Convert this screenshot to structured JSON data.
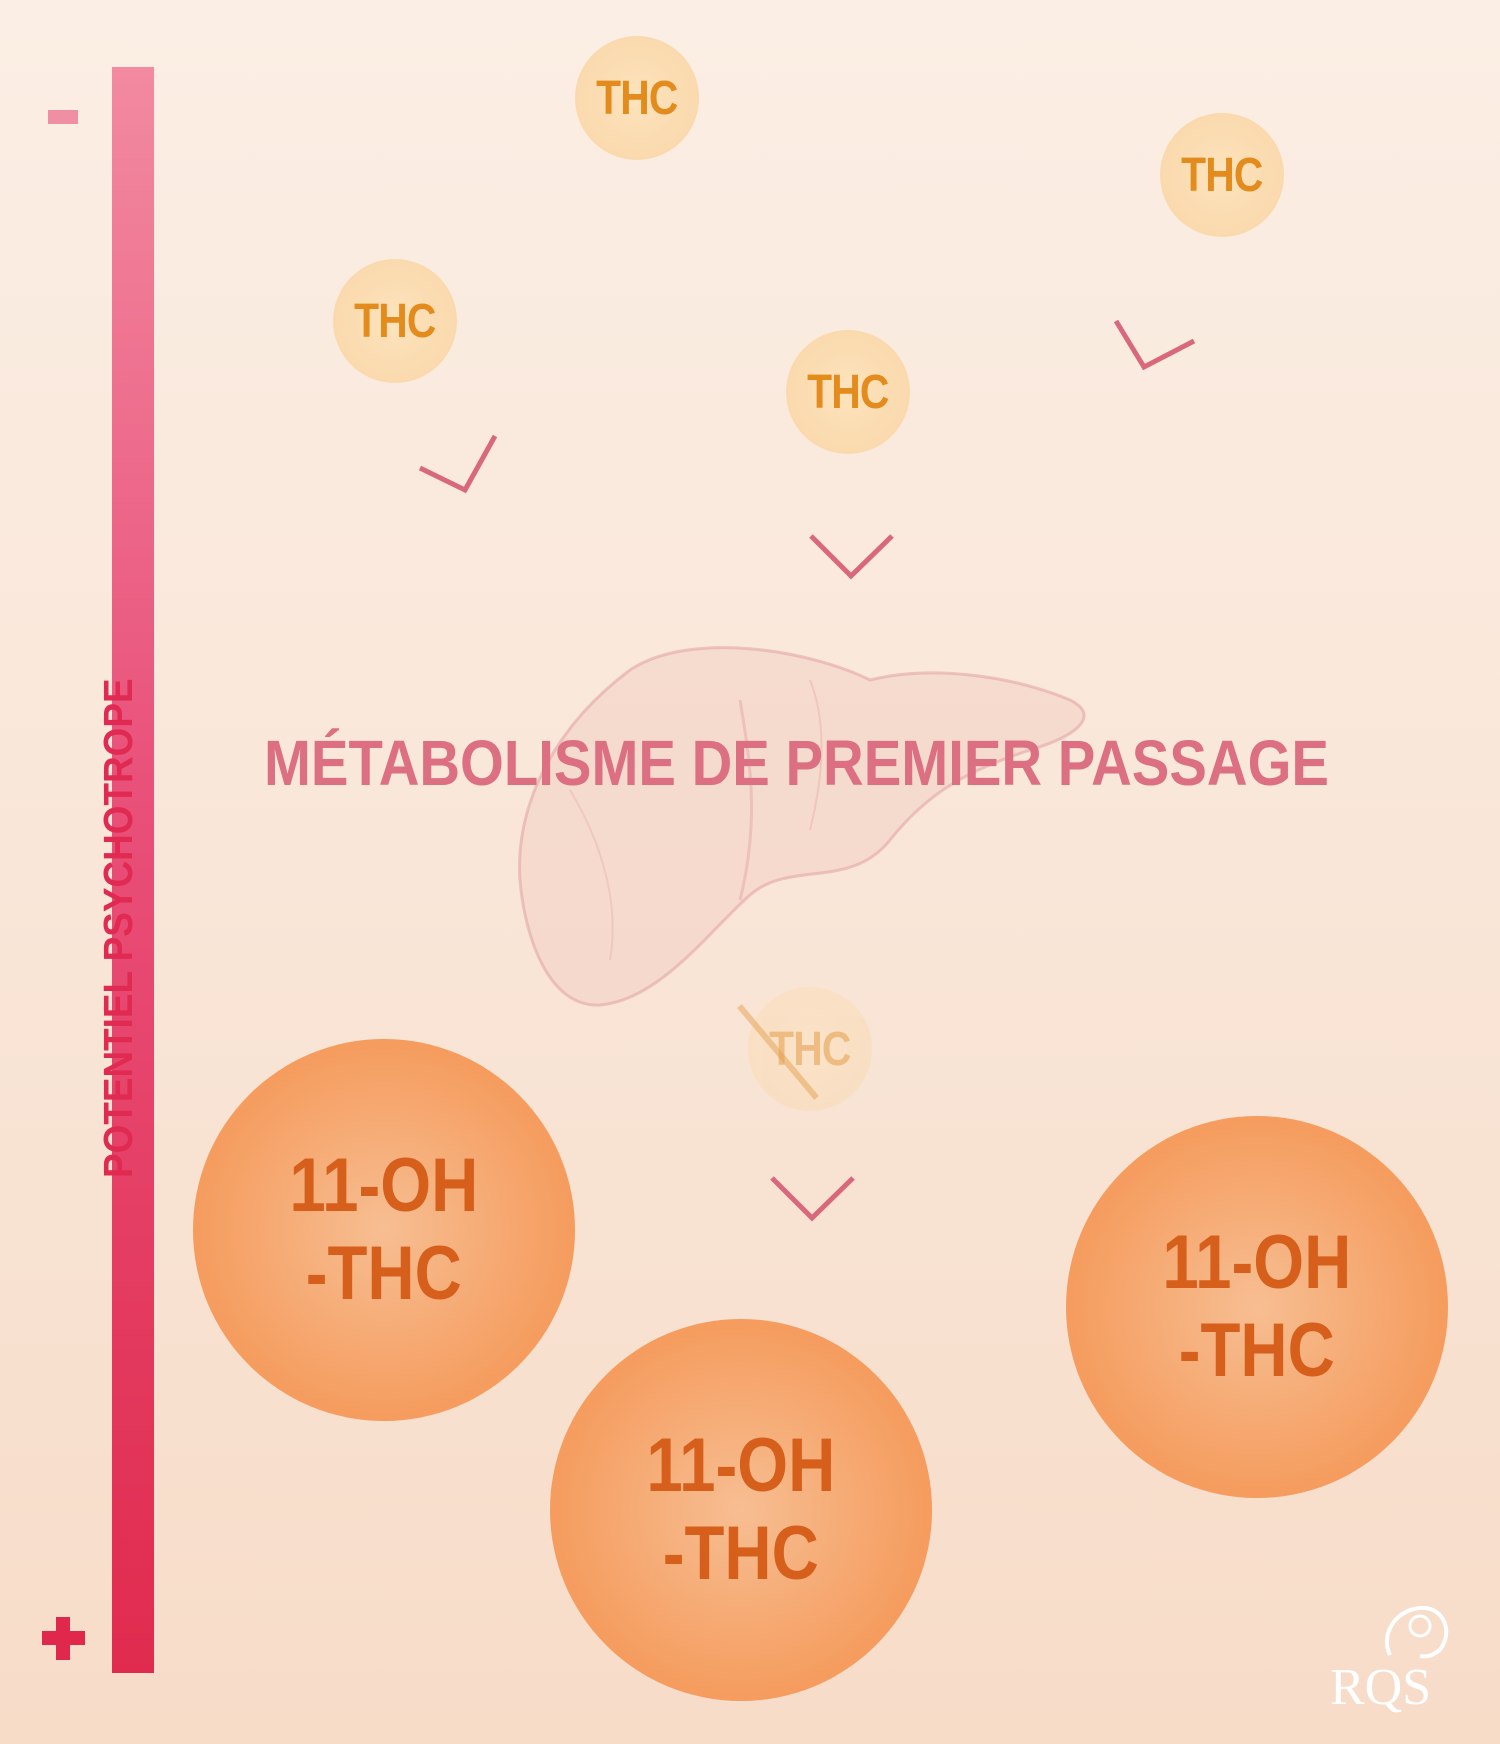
{
  "axis": {
    "title": "POTENTIEL PSYCHOTROPE",
    "top_sign": "-",
    "bottom_sign": "+"
  },
  "thc_molecules": [
    "THC",
    "THC",
    "THC",
    "THC"
  ],
  "metabolized_thc": "THC",
  "process_title": "MÉTABOLISME DE PREMIER PASSAGE",
  "metabolites": [
    {
      "line1": "11-OH",
      "line2": "-THC"
    },
    {
      "line1": "11-OH",
      "line2": "-THC"
    },
    {
      "line1": "11-OH",
      "line2": "-THC"
    }
  ],
  "logo": {
    "text": "RQS"
  },
  "colors": {
    "scale_top": "#f28aa1",
    "scale_bottom": "#e02b4e",
    "thc_text": "#e38b1c",
    "thc_bubble": "#f9d5a6",
    "metabolite_fill": "#f59c5e",
    "metabolite_text": "#d65f1c",
    "title_text": "#dc6f82",
    "arrow": "#d9687d"
  }
}
